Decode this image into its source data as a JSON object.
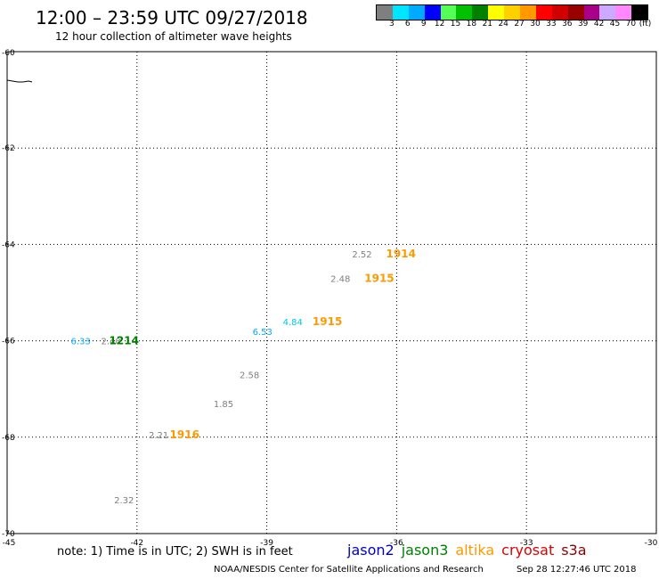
{
  "header": {
    "title": "12:00 – 23:59 UTC 09/27/2018",
    "subtitle": "12 hour collection of altimeter wave heights"
  },
  "colorbar": {
    "unit": "(ft)",
    "ticks": [
      "3",
      "6",
      "9",
      "12",
      "15",
      "18",
      "21",
      "24",
      "27",
      "30",
      "33",
      "36",
      "39",
      "42",
      "45",
      "70"
    ],
    "colors": [
      "#7f7f7f",
      "#00e5ff",
      "#00aaff",
      "#0000ff",
      "#55ff55",
      "#00c000",
      "#008000",
      "#ffff00",
      "#ffd000",
      "#ff9900",
      "#ff0000",
      "#d00000",
      "#990000",
      "#aa0088",
      "#ccaaff",
      "#ff88ff",
      "#000000"
    ]
  },
  "map": {
    "lon_min": -45,
    "lon_max": -30,
    "lat_min": -70,
    "lat_max": -60,
    "lon_ticks": [
      -45,
      -42,
      -39,
      -36,
      -33,
      -30
    ],
    "lat_ticks": [
      -60,
      -62,
      -64,
      -66,
      -68,
      -70
    ],
    "grid_lons": [
      -42,
      -39,
      -36,
      -33
    ],
    "grid_lats": [
      -62,
      -64,
      -66,
      -68
    ]
  },
  "observations": [
    {
      "lon": -35.9,
      "lat": -64.2,
      "text": "1914",
      "color": "#ff9900",
      "bold": true
    },
    {
      "lon": -36.8,
      "lat": -64.2,
      "text": "2.52",
      "color": "#7f7f7f",
      "bold": false
    },
    {
      "lon": -36.4,
      "lat": -64.7,
      "text": "1915",
      "color": "#ff9900",
      "bold": true
    },
    {
      "lon": -37.3,
      "lat": -64.7,
      "text": "2.48",
      "color": "#7f7f7f",
      "bold": false
    },
    {
      "lon": -37.6,
      "lat": -65.6,
      "text": "1915",
      "color": "#ff9900",
      "bold": true
    },
    {
      "lon": -38.4,
      "lat": -65.6,
      "text": "4.84",
      "color": "#00c8e0",
      "bold": false
    },
    {
      "lon": -39.1,
      "lat": -65.8,
      "text": "6.53",
      "color": "#00aaff",
      "bold": false
    },
    {
      "lon": -42.6,
      "lat": -66.0,
      "text": "2.40",
      "color": "#7f7f7f",
      "bold": false
    },
    {
      "lon": -42.3,
      "lat": -66.0,
      "text": "1214",
      "color": "#008000",
      "bold": true
    },
    {
      "lon": -43.3,
      "lat": -66.0,
      "text": "6.33",
      "color": "#00aaff",
      "bold": false
    },
    {
      "lon": -39.4,
      "lat": -66.7,
      "text": "2.58",
      "color": "#7f7f7f",
      "bold": false
    },
    {
      "lon": -40.0,
      "lat": -67.3,
      "text": "1.85",
      "color": "#7f7f7f",
      "bold": false
    },
    {
      "lon": -40.9,
      "lat": -67.95,
      "text": "1916",
      "color": "#ff9900",
      "bold": true
    },
    {
      "lon": -41.5,
      "lat": -67.95,
      "text": "2.21",
      "color": "#7f7f7f",
      "bold": false
    },
    {
      "lon": -42.3,
      "lat": -69.3,
      "text": "2.32",
      "color": "#7f7f7f",
      "bold": false
    }
  ],
  "footer": {
    "note": "note: 1) Time is in UTC; 2) SWH is in feet",
    "legend": [
      {
        "label": "jason2",
        "color": "#0000cc"
      },
      {
        "label": "jason3",
        "color": "#008000"
      },
      {
        "label": "altika",
        "color": "#ff9900"
      },
      {
        "label": "cryosat",
        "color": "#dd0000"
      },
      {
        "label": "s3a",
        "color": "#880000"
      }
    ],
    "credit": "NOAA/NESDIS Center for Satellite Applications and Research",
    "timestamp": "Sep 28 12:27:46 UTC 2018"
  }
}
